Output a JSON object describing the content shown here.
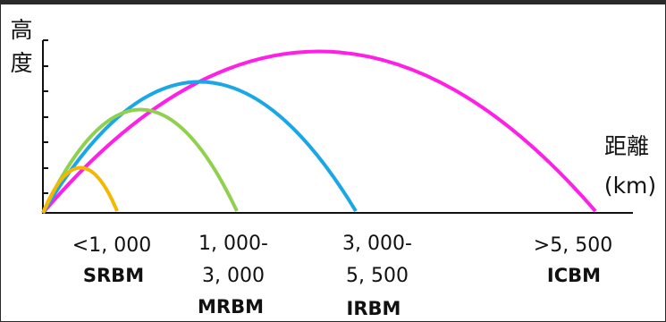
{
  "y_axis_label": [
    "高",
    "度"
  ],
  "x_axis_label": [
    "距離",
    "(km)"
  ],
  "colors": {
    "SRBM": "#f5b800",
    "MRBM": "#8fd14f",
    "IRBM": "#1aa7e6",
    "ICBM": "#ff1fe6",
    "axis": "#111111"
  },
  "categories": [
    {
      "key": "SRBM",
      "range_lines": [
        "<1, 000"
      ],
      "class": "SRBM"
    },
    {
      "key": "MRBM",
      "range_lines": [
        "1, 000-",
        "3, 000"
      ],
      "class": "MRBM"
    },
    {
      "key": "IRBM",
      "range_lines": [
        "3, 000-",
        "5, 500"
      ],
      "class": "IRBM"
    },
    {
      "key": "ICBM",
      "range_lines": [
        ">5, 500"
      ],
      "class": "ICBM"
    }
  ]
}
